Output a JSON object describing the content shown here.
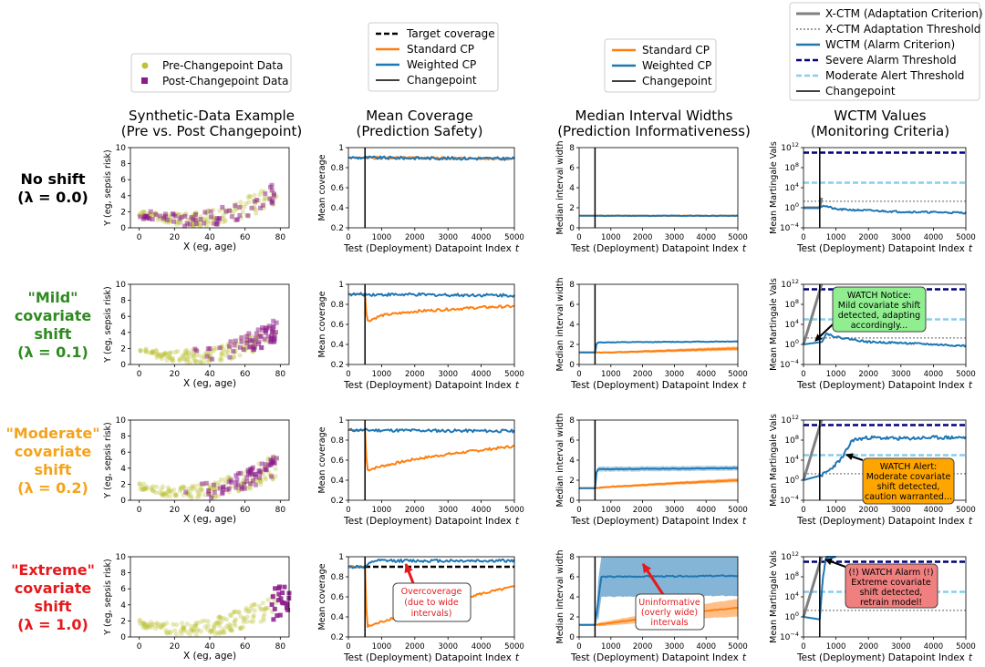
{
  "column_titles": [
    {
      "line1": "Synthetic-Data Example",
      "line2": "(Pre vs. Post Changepoint)"
    },
    {
      "line1": "Mean Coverage",
      "line2": "(Prediction Safety)"
    },
    {
      "line1": "Median Interval Widths",
      "line2": "(Prediction Informativeness)"
    },
    {
      "line1": "WCTM Values",
      "line2": "(Monitoring Criteria)"
    }
  ],
  "row_labels": [
    {
      "lines": [
        "No shift",
        "(λ = 0.0)"
      ],
      "color": "#000000"
    },
    {
      "lines": [
        "\"Mild\"",
        "covariate",
        "shift",
        "(λ = 0.1)"
      ],
      "color": "#2e8b20"
    },
    {
      "lines": [
        "\"Moderate\"",
        "covariate",
        "shift",
        "(λ = 0.2)"
      ],
      "color": "#f5a31a"
    },
    {
      "lines": [
        "\"Extreme\"",
        "covariate",
        "shift",
        "(λ = 1.0)"
      ],
      "color": "#e41a1c"
    }
  ],
  "colors": {
    "pre": "#bcc23a",
    "post": "#8b1a8b",
    "standard": "#ff7f0e",
    "weighted": "#1f77b4",
    "xctm": "#808080",
    "severe": "#00007f",
    "moderate": "#87ceeb",
    "green_box": "#90ee90",
    "orange_box": "#ffa500",
    "red_box": "#f08080"
  },
  "legends": {
    "col1": [
      "Pre-Changepoint Data",
      "Post-Changepoint Data"
    ],
    "col2": [
      "Target coverage",
      "Standard CP",
      "Weighted CP",
      "Changepoint"
    ],
    "col3": [
      "Standard CP",
      "Weighted CP",
      "Changepoint"
    ],
    "col4": [
      "X-CTM (Adaptation Criterion)",
      "X-CTM Adaptation Threshold",
      "WCTM (Alarm Criterion)",
      "Severe Alarm Threshold",
      "Moderate Alert Threshold",
      "Changepoint"
    ]
  },
  "axis_labels": {
    "scatter_x": "X (eg, age)",
    "scatter_y": "Y (eg, sepsis risk)",
    "test_x": "Test (Deployment) Datapoint Index",
    "t_symbol": "t",
    "coverage_y": "Mean coverage",
    "width_y": "Median interval width",
    "mart_y": "Mean Martingale Vals"
  },
  "annotations": {
    "mild": [
      "WATCH Notice:",
      "Mild covariate shift",
      "detected, adapting",
      "accordingly..."
    ],
    "moderate": [
      "WATCH Alert:",
      "Moderate covariate",
      "shift detected,",
      "caution warranted..."
    ],
    "extreme": [
      "(!) WATCH Alarm (!)",
      "Extreme covariate",
      "shift detected,",
      "retrain model!"
    ],
    "overcoverage": [
      "Overcoverage",
      "(due to wide",
      "intervals)"
    ],
    "uninformative": [
      "Uninformative",
      "(overly wide)",
      "intervals"
    ]
  },
  "chart_data": [
    {
      "panel": "scatter",
      "type": "scatter",
      "title": "Synthetic-Data Example (Pre vs. Post Changepoint)",
      "xlabel": "X (eg, age)",
      "ylabel": "Y (eg, sepsis risk)",
      "xlim": [
        -5,
        85
      ],
      "ylim": [
        0,
        10
      ],
      "xticks": [
        0,
        20,
        40,
        60,
        80
      ],
      "yticks": [
        0,
        2,
        4,
        6,
        8,
        10
      ],
      "curve": "y ≈ 1 + 0.0012·(x − 25)^2",
      "post_x_ranges": [
        [
          0,
          78
        ],
        [
          0,
          78
        ],
        [
          0,
          78
        ],
        [
          75,
          85
        ]
      ]
    },
    {
      "panel": "coverage",
      "type": "line",
      "title": "Mean Coverage (Prediction Safety)",
      "xlabel": "Test (Deployment) Datapoint Index t",
      "ylabel": "Mean coverage",
      "xlim": [
        0,
        5000
      ],
      "ylim": [
        0.2,
        1.0
      ],
      "xticks": [
        0,
        1000,
        2000,
        3000,
        4000,
        5000
      ],
      "yticks": [
        0.2,
        0.4,
        0.6,
        0.8,
        1.0
      ],
      "changepoint": 500,
      "target": 0.9,
      "rows": [
        {
          "standard": [
            [
              0,
              0.9
            ],
            [
              500,
              0.9
            ],
            [
              5000,
              0.89
            ]
          ],
          "weighted": [
            [
              0,
              0.9
            ],
            [
              5000,
              0.89
            ]
          ]
        },
        {
          "standard": [
            [
              0,
              0.9
            ],
            [
              500,
              0.9
            ],
            [
              560,
              0.63
            ],
            [
              1000,
              0.69
            ],
            [
              2000,
              0.73
            ],
            [
              3000,
              0.75
            ],
            [
              4000,
              0.77
            ],
            [
              5000,
              0.78
            ]
          ],
          "weighted": [
            [
              0,
              0.9
            ],
            [
              5000,
              0.89
            ]
          ]
        },
        {
          "standard": [
            [
              0,
              0.9
            ],
            [
              500,
              0.9
            ],
            [
              560,
              0.5
            ],
            [
              1000,
              0.54
            ],
            [
              2000,
              0.61
            ],
            [
              3000,
              0.66
            ],
            [
              4000,
              0.7
            ],
            [
              5000,
              0.74
            ]
          ],
          "weighted": [
            [
              0,
              0.9
            ],
            [
              5000,
              0.89
            ]
          ]
        },
        {
          "standard": [
            [
              0,
              0.9
            ],
            [
              500,
              0.9
            ],
            [
              560,
              0.3
            ],
            [
              1000,
              0.35
            ],
            [
              2000,
              0.47
            ],
            [
              3000,
              0.56
            ],
            [
              4000,
              0.63
            ],
            [
              5000,
              0.7
            ]
          ],
          "weighted": [
            [
              0,
              0.9
            ],
            [
              500,
              0.9
            ],
            [
              800,
              0.96
            ],
            [
              5000,
              0.96
            ]
          ]
        }
      ]
    },
    {
      "panel": "width",
      "type": "line",
      "title": "Median Interval Widths (Prediction Informativeness)",
      "xlabel": "Test (Deployment) Datapoint Index t",
      "ylabel": "Median interval width",
      "xlim": [
        0,
        5000
      ],
      "ylim": [
        0,
        8
      ],
      "xticks": [
        0,
        1000,
        2000,
        3000,
        4000,
        5000
      ],
      "yticks": [
        0,
        2,
        4,
        6,
        8
      ],
      "changepoint": 500,
      "rows": [
        {
          "standard": [
            [
              0,
              1.2
            ],
            [
              5000,
              1.2
            ]
          ],
          "weighted": [
            [
              0,
              1.2
            ],
            [
              5000,
              1.2
            ]
          ]
        },
        {
          "standard": [
            [
              0,
              1.2
            ],
            [
              500,
              1.2
            ],
            [
              1000,
              1.2
            ],
            [
              2000,
              1.3
            ],
            [
              3000,
              1.4
            ],
            [
              4000,
              1.5
            ],
            [
              5000,
              1.6
            ]
          ],
          "weighted": [
            [
              0,
              1.2
            ],
            [
              500,
              1.2
            ],
            [
              560,
              2.2
            ],
            [
              5000,
              2.3
            ]
          ]
        },
        {
          "standard": [
            [
              0,
              1.2
            ],
            [
              500,
              1.2
            ],
            [
              1000,
              1.35
            ],
            [
              2000,
              1.5
            ],
            [
              3000,
              1.7
            ],
            [
              4000,
              1.85
            ],
            [
              5000,
              2.0
            ]
          ],
          "weighted": [
            [
              0,
              1.2
            ],
            [
              500,
              1.2
            ],
            [
              560,
              3.1
            ],
            [
              5000,
              3.2
            ]
          ]
        },
        {
          "standard": [
            [
              0,
              1.2
            ],
            [
              500,
              1.2
            ],
            [
              1000,
              1.4
            ],
            [
              2000,
              1.8
            ],
            [
              3000,
              2.2
            ],
            [
              4000,
              2.6
            ],
            [
              5000,
              2.9
            ]
          ],
          "weighted": [
            [
              0,
              1.2
            ],
            [
              500,
              1.2
            ],
            [
              700,
              6.0
            ],
            [
              5000,
              6.1
            ]
          ]
        }
      ]
    },
    {
      "panel": "martingale",
      "type": "line",
      "title": "WCTM Values (Monitoring Criteria)",
      "xlabel": "Test (Deployment) Datapoint Index t",
      "ylabel": "Mean Martingale Vals",
      "xlim": [
        0,
        5000
      ],
      "ylim_log10": [
        -4,
        12
      ],
      "xticks": [
        0,
        1000,
        2000,
        3000,
        4000,
        5000
      ],
      "yticks_log10": [
        -4,
        0,
        4,
        8,
        12
      ],
      "changepoint": 500,
      "severe_log10": 11,
      "moderate_log10": 5,
      "xctm_threshold_log10": 1.3,
      "rows": [
        {
          "wctm_log10": [
            [
              0,
              0
            ],
            [
              500,
              0
            ],
            [
              600,
              0.5
            ],
            [
              1000,
              -0.3
            ],
            [
              3000,
              -0.8
            ],
            [
              5000,
              -1
            ]
          ],
          "xctm_log10": [
            [
              0,
              0
            ],
            [
              500,
              0
            ],
            [
              560,
              2
            ]
          ]
        },
        {
          "wctm_log10": [
            [
              0,
              0
            ],
            [
              560,
              0.5
            ],
            [
              700,
              2.2
            ],
            [
              1000,
              1.5
            ],
            [
              2000,
              0.5
            ],
            [
              3000,
              0.3
            ],
            [
              4000,
              0
            ],
            [
              5000,
              -0.3
            ]
          ],
          "xctm_log10": [
            [
              0,
              0
            ],
            [
              560,
              12
            ]
          ]
        },
        {
          "wctm_log10": [
            [
              0,
              0
            ],
            [
              560,
              1
            ],
            [
              800,
              2
            ],
            [
              1200,
              4.5
            ],
            [
              1500,
              8
            ],
            [
              2000,
              8.5
            ],
            [
              3000,
              8.3
            ],
            [
              4000,
              8.5
            ],
            [
              5000,
              8.5
            ]
          ],
          "xctm_log10": [
            [
              0,
              0
            ],
            [
              560,
              12
            ]
          ]
        },
        {
          "wctm_log10": [
            [
              0,
              0
            ],
            [
              500,
              -0.5
            ],
            [
              600,
              8
            ],
            [
              700,
              12
            ],
            [
              1000,
              12
            ]
          ],
          "xctm_log10": [
            [
              0,
              0
            ],
            [
              560,
              12
            ]
          ]
        }
      ]
    }
  ]
}
